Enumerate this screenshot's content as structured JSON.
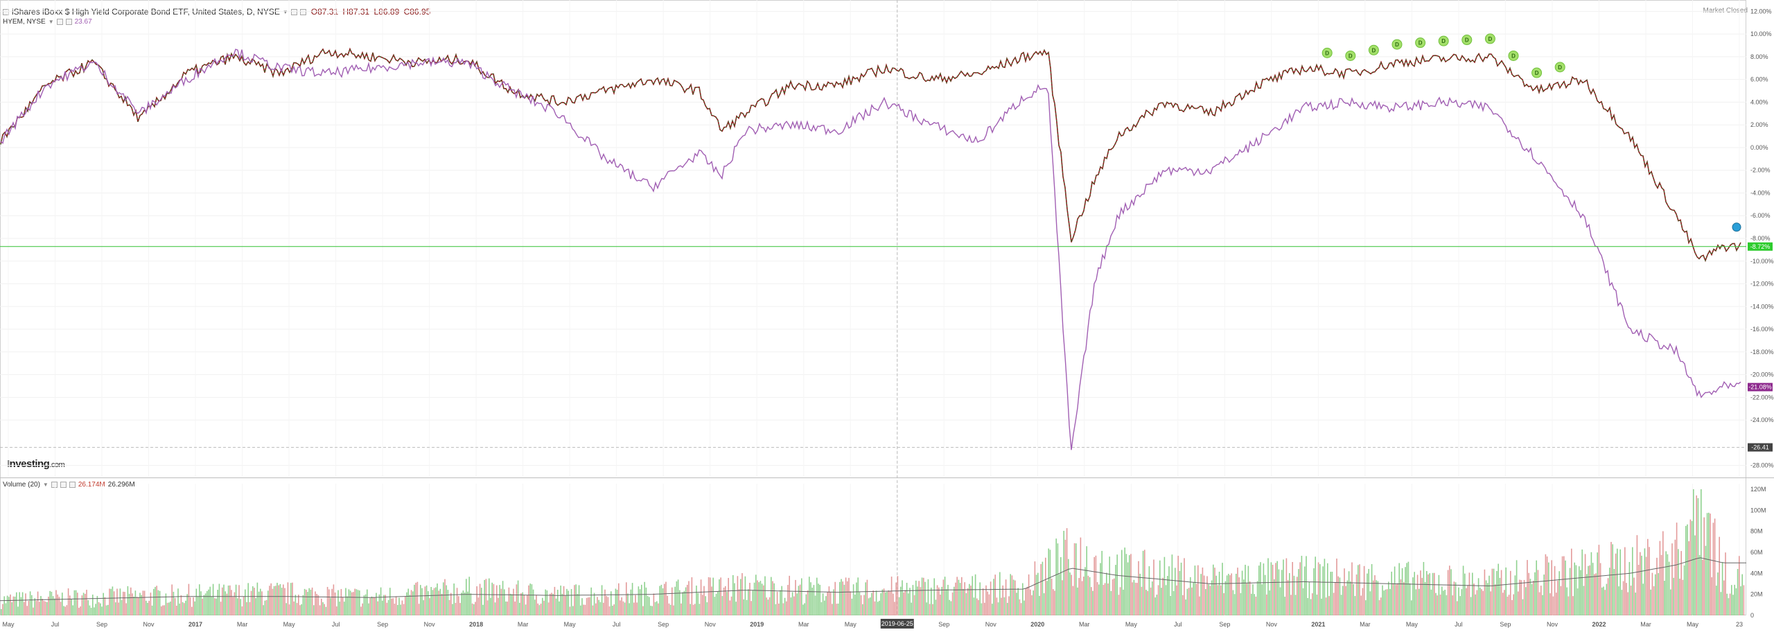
{
  "header": {
    "title": "iShares iBoxx $ High Yield Corporate Bond ETF, United States, D, NYSE",
    "ohlc": {
      "open": "O87.31",
      "high": "H87.31",
      "low": "L86.89",
      "close": "C86.95"
    },
    "compare_label": "HYEM, NYSE",
    "compare_value": "23.67",
    "market_status": "Market Closed"
  },
  "volume_legend": {
    "label": "Volume (20)",
    "value1": "26.174M",
    "value2": "26.296M"
  },
  "logo": {
    "main": "Investing",
    "suffix": ".com"
  },
  "colors": {
    "up": "#2e7d32",
    "down": "#8b1a1a",
    "compare": "#a15fb3",
    "current_line": "#34c034",
    "vol_up": "#8fd18f",
    "vol_down": "#e39a9a"
  },
  "chart_data": {
    "type": "line",
    "price_axis": {
      "unit": "%",
      "ticks": [
        "12.00%",
        "10.00%",
        "8.00%",
        "6.00%",
        "4.00%",
        "2.00%",
        "0.00%",
        "-2.00%",
        "-4.00%",
        "-6.00%",
        "-8.00%",
        "-10.00%",
        "-12.00%",
        "-14.00%",
        "-16.00%",
        "-18.00%",
        "-20.00%",
        "-22.00%",
        "-24.00%",
        "-28.00%"
      ],
      "ylim": [
        -29,
        13
      ]
    },
    "price_labels": {
      "main": "-8.72%",
      "compare": "-21.08%",
      "crosshair": "-26.41"
    },
    "current_level": -8.72,
    "crosshair_level": -26.41,
    "x_axis": {
      "labels": [
        "May",
        "Jul",
        "Sep",
        "Nov",
        "2017",
        "Mar",
        "May",
        "Jul",
        "Sep",
        "Nov",
        "2018",
        "Mar",
        "May",
        "Jul",
        "Sep",
        "Nov",
        "2019",
        "Mar",
        "May",
        "2019-06-25",
        "Sep",
        "Nov",
        "2020",
        "Mar",
        "May",
        "Jul",
        "Sep",
        "Nov",
        "2021",
        "Mar",
        "May",
        "Jul",
        "Sep",
        "Nov",
        "2022",
        "Mar",
        "May",
        "23"
      ],
      "highlighted": "2019-06-25"
    },
    "series": [
      {
        "role": "main",
        "x": [
          "2016-05",
          "2016-07",
          "2016-09",
          "2016-11",
          "2017-01",
          "2017-03",
          "2017-05",
          "2017-07",
          "2017-09",
          "2017-11",
          "2018-01",
          "2018-03",
          "2018-05",
          "2018-07",
          "2018-09",
          "2018-11",
          "2018-12",
          "2019-01",
          "2019-03",
          "2019-05",
          "2019-07",
          "2019-09",
          "2019-11",
          "2020-01",
          "2020-02",
          "2020-03",
          "2020-04",
          "2020-05",
          "2020-07",
          "2020-09",
          "2020-11",
          "2021-01",
          "2021-03",
          "2021-05",
          "2021-07",
          "2021-09",
          "2021-11",
          "2022-01",
          "2022-03",
          "2022-05",
          "2022-06",
          "2022-07"
        ],
        "values": [
          0.5,
          5.5,
          7.5,
          2.5,
          6.5,
          8.0,
          6.5,
          8.5,
          8.0,
          7.5,
          7.8,
          5.0,
          4.0,
          5.0,
          6.0,
          5.0,
          1.5,
          3.0,
          5.5,
          5.5,
          7.0,
          6.0,
          6.5,
          8.0,
          8.5,
          -8.0,
          -3.0,
          1.0,
          4.0,
          3.0,
          5.5,
          7.0,
          6.5,
          7.5,
          7.8,
          8.0,
          5.0,
          6.0,
          1.0,
          -6.0,
          -10.0,
          -8.7
        ]
      },
      {
        "role": "compare",
        "x": [
          "2016-05",
          "2016-07",
          "2016-09",
          "2016-11",
          "2017-01",
          "2017-03",
          "2017-05",
          "2017-07",
          "2017-09",
          "2017-11",
          "2018-01",
          "2018-03",
          "2018-05",
          "2018-07",
          "2018-09",
          "2018-11",
          "2018-12",
          "2019-01",
          "2019-03",
          "2019-05",
          "2019-07",
          "2019-09",
          "2019-11",
          "2020-01",
          "2020-02",
          "2020-03",
          "2020-04",
          "2020-05",
          "2020-07",
          "2020-09",
          "2020-11",
          "2021-01",
          "2021-03",
          "2021-05",
          "2021-07",
          "2021-09",
          "2021-11",
          "2022-01",
          "2022-03",
          "2022-05",
          "2022-06",
          "2022-07"
        ],
        "values": [
          0.5,
          5.5,
          7.5,
          3.0,
          6.0,
          8.5,
          7.0,
          6.5,
          7.0,
          7.5,
          7.5,
          5.0,
          3.0,
          -1.0,
          -3.5,
          -0.5,
          -2.5,
          1.5,
          2.0,
          1.5,
          4.0,
          2.0,
          0.5,
          4.5,
          5.5,
          -27.0,
          -12.0,
          -6.0,
          -2.0,
          -2.0,
          0.5,
          3.5,
          4.0,
          3.5,
          4.0,
          3.5,
          -1.0,
          -6.0,
          -16.0,
          -18.0,
          -22.0,
          -21.1
        ]
      }
    ],
    "dividends": {
      "label": "D",
      "dates": [
        "2021-02",
        "2021-03",
        "2021-04",
        "2021-05",
        "2021-06",
        "2021-07",
        "2021-08",
        "2021-09",
        "2021-10",
        "2021-11",
        "2021-12"
      ]
    },
    "volume": {
      "ticks": [
        "120M",
        "100M",
        "80M",
        "60M",
        "40M",
        "20M",
        "0"
      ],
      "ylim": [
        0,
        120
      ],
      "unit": "M",
      "x": [
        "2016-05",
        "2016-09",
        "2017-01",
        "2017-05",
        "2017-09",
        "2018-01",
        "2018-05",
        "2018-09",
        "2019-01",
        "2019-05",
        "2019-09",
        "2020-01",
        "2020-03",
        "2020-05",
        "2020-09",
        "2021-01",
        "2021-05",
        "2021-09",
        "2022-01",
        "2022-03",
        "2022-05",
        "2022-06",
        "2022-07"
      ],
      "values": [
        15,
        18,
        20,
        22,
        18,
        25,
        20,
        22,
        28,
        24,
        26,
        28,
        60,
        45,
        35,
        38,
        35,
        32,
        45,
        50,
        60,
        120,
        40
      ],
      "average": [
        14,
        16,
        18,
        18,
        17,
        20,
        19,
        20,
        24,
        22,
        24,
        25,
        45,
        38,
        30,
        32,
        30,
        28,
        36,
        40,
        48,
        55,
        50
      ]
    }
  }
}
